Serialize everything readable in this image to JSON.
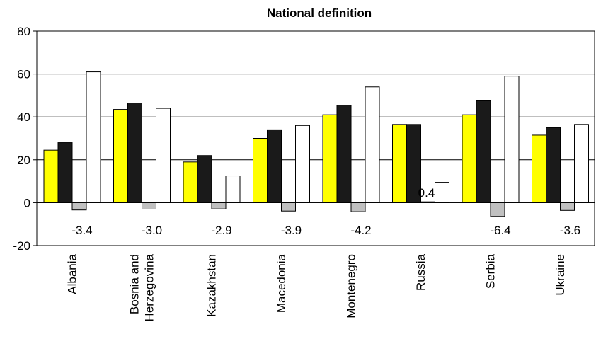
{
  "chart_data": {
    "type": "bar",
    "title": "National definition",
    "xlabel": "",
    "ylabel": "",
    "ylim": [
      -20,
      80
    ],
    "yticks": [
      -20,
      0,
      20,
      40,
      60,
      80
    ],
    "grid": true,
    "legend": "none",
    "categories": [
      "Albania",
      "Bosnia and Herzegovina",
      "Kazakhstan",
      "Macedonia",
      "Montenegro",
      "Russia",
      "Serbia",
      "Ukraine"
    ],
    "category_lines": [
      [
        "Albania"
      ],
      [
        "Bosnia and",
        "Herzegovina"
      ],
      [
        "Kazakhstan"
      ],
      [
        "Macedonia"
      ],
      [
        "Montenegro"
      ],
      [
        "Russia"
      ],
      [
        "Serbia"
      ],
      [
        "Ukraine"
      ]
    ],
    "series": [
      {
        "color": "#ffff00",
        "values": [
          24.5,
          43.5,
          19,
          30,
          41,
          36.5,
          41,
          31.5
        ]
      },
      {
        "color": "#1a1a1a",
        "values": [
          28,
          46.5,
          22,
          34,
          45.5,
          36.5,
          47.5,
          35
        ]
      },
      {
        "color": "#c0c0c0",
        "values": [
          -3.4,
          -3.0,
          -2.9,
          -3.9,
          -4.2,
          0.4,
          -6.4,
          -3.6
        ],
        "data_labels": [
          "-3.4",
          "-3.0",
          "-2.9",
          "-3.9",
          "-4.2",
          "0.4",
          "-6.4",
          "-3.6"
        ]
      },
      {
        "color": "#ffffff",
        "values": [
          61,
          44,
          12.5,
          36,
          54,
          9.5,
          59,
          36.5
        ]
      }
    ]
  }
}
